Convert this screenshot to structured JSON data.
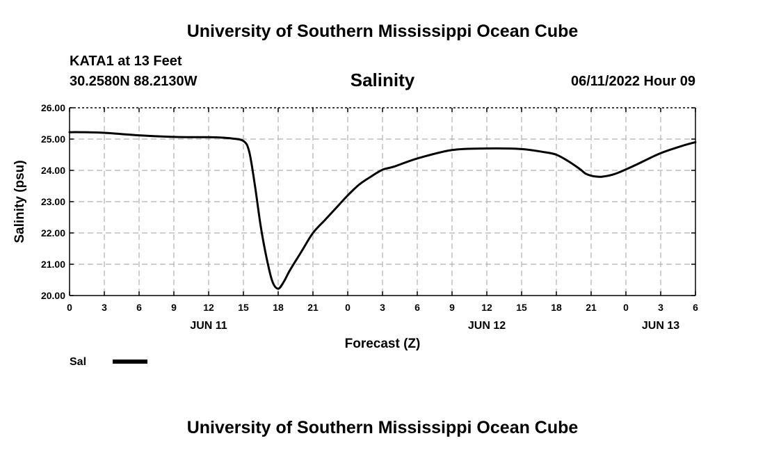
{
  "header": {
    "title": "University of Southern Mississippi Ocean Cube",
    "station": "KATA1 at 13 Feet",
    "coords": "30.2580N  88.2130W",
    "variable": "Salinity",
    "datetime": "06/11/2022 Hour 09"
  },
  "footer": {
    "title": "University of Southern Mississippi Ocean Cube"
  },
  "colors": {
    "line": "#000000",
    "grid": "#b0b0b0",
    "background": "#ffffff"
  },
  "chart_data": {
    "type": "line",
    "title": "Salinity",
    "xlabel": "Forecast (Z)",
    "ylabel": "Salinity (psu)",
    "xlim": [
      0,
      54
    ],
    "ylim": [
      20.0,
      26.0
    ],
    "grid": true,
    "xticks": [
      {
        "x": 0,
        "label": "0"
      },
      {
        "x": 3,
        "label": "3"
      },
      {
        "x": 6,
        "label": "6"
      },
      {
        "x": 9,
        "label": "9"
      },
      {
        "x": 12,
        "label": "12"
      },
      {
        "x": 15,
        "label": "15"
      },
      {
        "x": 18,
        "label": "18"
      },
      {
        "x": 21,
        "label": "21"
      },
      {
        "x": 24,
        "label": "0"
      },
      {
        "x": 27,
        "label": "3"
      },
      {
        "x": 30,
        "label": "6"
      },
      {
        "x": 33,
        "label": "9"
      },
      {
        "x": 36,
        "label": "12"
      },
      {
        "x": 39,
        "label": "15"
      },
      {
        "x": 42,
        "label": "18"
      },
      {
        "x": 45,
        "label": "21"
      },
      {
        "x": 48,
        "label": "0"
      },
      {
        "x": 51,
        "label": "3"
      },
      {
        "x": 54,
        "label": "6"
      }
    ],
    "yticks": [
      {
        "y": 20,
        "label": "20.00"
      },
      {
        "y": 21,
        "label": "21.00"
      },
      {
        "y": 22,
        "label": "22.00"
      },
      {
        "y": 23,
        "label": "23.00"
      },
      {
        "y": 24,
        "label": "24.00"
      },
      {
        "y": 25,
        "label": "25.00"
      },
      {
        "y": 26,
        "label": "26.00"
      }
    ],
    "date_labels": [
      {
        "x": 12,
        "label": "JUN 11"
      },
      {
        "x": 36,
        "label": "JUN 12"
      },
      {
        "x": 51,
        "label": "JUN 13"
      }
    ],
    "legend": {
      "label": "Sal",
      "position": "bottom-left"
    },
    "series": [
      {
        "name": "Sal",
        "x": [
          0,
          1,
          3,
          6,
          9,
          12,
          13,
          14,
          15,
          15.5,
          16,
          16.5,
          17,
          17.5,
          18,
          18.5,
          19,
          20,
          21,
          22,
          23,
          24,
          25,
          26,
          27,
          28,
          30,
          33,
          36,
          39,
          41,
          42,
          43,
          44,
          44.5,
          45,
          45.5,
          46,
          47,
          48,
          49,
          51,
          53,
          54
        ],
        "values": [
          25.22,
          25.22,
          25.2,
          25.12,
          25.07,
          25.06,
          25.05,
          25.02,
          24.94,
          24.6,
          23.5,
          22.2,
          21.2,
          20.45,
          20.22,
          20.45,
          20.8,
          21.4,
          22.0,
          22.4,
          22.8,
          23.2,
          23.55,
          23.8,
          24.02,
          24.12,
          24.38,
          24.65,
          24.7,
          24.68,
          24.58,
          24.5,
          24.3,
          24.05,
          23.9,
          23.83,
          23.8,
          23.8,
          23.88,
          24.03,
          24.2,
          24.55,
          24.8,
          24.9
        ]
      }
    ]
  }
}
